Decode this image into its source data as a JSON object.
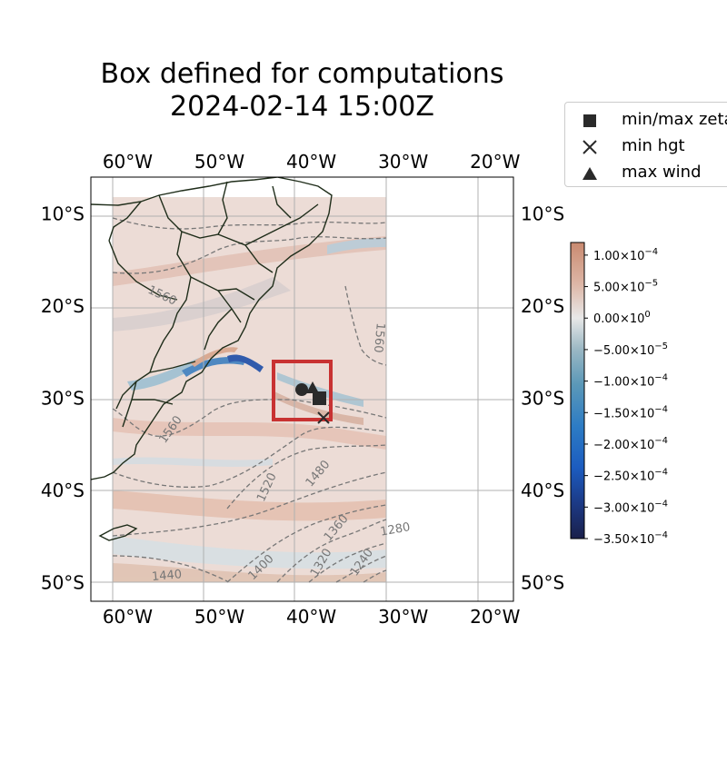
{
  "title": {
    "line1": "Box defined for computations",
    "line2": "2024-02-14 15:00Z"
  },
  "map": {
    "projection": "PlateCarree",
    "extent": {
      "lon": [
        -64,
        -18
      ],
      "lat": [
        -52,
        -6
      ]
    },
    "lon_ticks": [
      {
        "value": -60,
        "label": "60°W"
      },
      {
        "value": -50,
        "label": "50°W"
      },
      {
        "value": -40,
        "label": "40°W"
      },
      {
        "value": -30,
        "label": "30°W"
      },
      {
        "value": -20,
        "label": "20°W"
      }
    ],
    "lat_ticks": [
      {
        "value": -10,
        "label": "10°S"
      },
      {
        "value": -20,
        "label": "20°S"
      },
      {
        "value": -30,
        "label": "30°S"
      },
      {
        "value": -40,
        "label": "40°S"
      },
      {
        "value": -50,
        "label": "50°S"
      }
    ],
    "gridlines": true,
    "data_region": {
      "lon": [
        -60,
        -30
      ],
      "lat": [
        -50,
        -8
      ]
    },
    "computation_box": {
      "lon": [
        -42.3,
        -36.0
      ],
      "lat": [
        -32.2,
        -25.8
      ],
      "color": "#c83232"
    },
    "markers": [
      {
        "type": "circle",
        "lon": -39.2,
        "lat": -28.9
      },
      {
        "type": "square",
        "lon": -37.3,
        "lat": -29.8
      },
      {
        "type": "cross",
        "lon": -37.0,
        "lat": -32.0
      },
      {
        "type": "triangle",
        "lon": -38.0,
        "lat": -28.6
      }
    ],
    "contour_labels": [
      {
        "text": "1560",
        "lon": -56.4,
        "lat": -19.2,
        "rotate": 25
      },
      {
        "text": "1560",
        "lon": -33.0,
        "lat": -23.4,
        "rotate": 95
      },
      {
        "text": "1560",
        "lon": -55.0,
        "lat": -33.6,
        "rotate": -55
      },
      {
        "text": "1520",
        "lon": -44.5,
        "lat": -39.8,
        "rotate": -65
      },
      {
        "text": "1480",
        "lon": -39.0,
        "lat": -38.4,
        "rotate": -50
      },
      {
        "text": "1440",
        "lon": -55.7,
        "lat": -49.6,
        "rotate": -5
      },
      {
        "text": "1400",
        "lon": -45.2,
        "lat": -48.6,
        "rotate": -45
      },
      {
        "text": "1360",
        "lon": -37.0,
        "lat": -44.3,
        "rotate": -50
      },
      {
        "text": "1320",
        "lon": -38.6,
        "lat": -48.0,
        "rotate": -60
      },
      {
        "text": "1280",
        "lon": -30.8,
        "lat": -44.6,
        "rotate": -10
      },
      {
        "text": "1240",
        "lon": -34.2,
        "lat": -48.0,
        "rotate": -55
      }
    ]
  },
  "legend": {
    "items": [
      {
        "symbol": "square",
        "label": "min/max zeta"
      },
      {
        "symbol": "cross",
        "label": "min hgt"
      },
      {
        "symbol": "triangle",
        "label": "max wind"
      }
    ]
  },
  "colorbar": {
    "vmin": -0.00035,
    "vmax": 0.00012,
    "ticks": [
      {
        "value": 0.0001,
        "mantissa": "1.00"
      },
      {
        "value": 5e-05,
        "mantissa": "5.00"
      },
      {
        "value": 0.0,
        "mantissa": "0.00",
        "exp": "0"
      },
      {
        "value": -5e-05,
        "mantissa": "−5.00"
      },
      {
        "value": -0.0001,
        "mantissa": "−1.00"
      },
      {
        "value": -0.00015,
        "mantissa": "−1.50"
      },
      {
        "value": -0.0002,
        "mantissa": "−2.00"
      },
      {
        "value": -0.00025,
        "mantissa": "−2.50"
      },
      {
        "value": -0.0003,
        "mantissa": "−3.00"
      },
      {
        "value": -0.00035,
        "mantissa": "−3.50"
      }
    ],
    "colors": [
      "#1a1f4a",
      "#1c3a86",
      "#1c5cc0",
      "#2d7cc4",
      "#5b98b8",
      "#9bb8c4",
      "#e8e8e8",
      "#ddb6a6",
      "#c98a70"
    ]
  }
}
